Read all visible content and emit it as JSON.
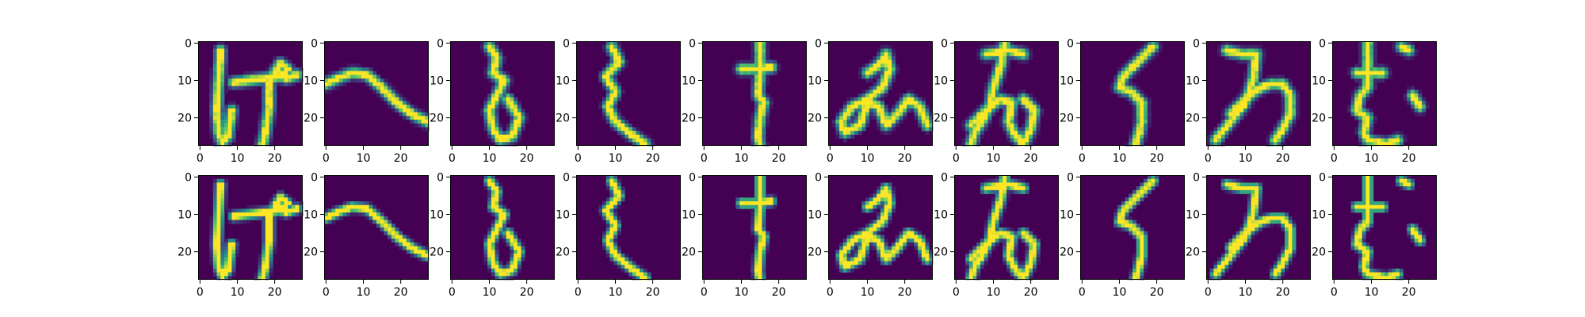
{
  "chart_data": {
    "type": "heatmap",
    "description": "2x10 grid of 28x28 grayscale images rendered with the viridis colormap; top row are inputs, bottom row are reconstructions",
    "grid": {
      "rows": 2,
      "cols": 10
    },
    "image_size": [
      28,
      28
    ],
    "colormap": "viridis",
    "colormap_stops": [
      "#440154",
      "#3b528b",
      "#21918c",
      "#5ec962",
      "#fde725"
    ],
    "x_ticks": [
      0,
      10,
      20
    ],
    "y_ticks": [
      0,
      10,
      20
    ],
    "x_tick_labels": [
      "0",
      "10",
      "20"
    ],
    "y_tick_labels": [
      "0",
      "10",
      "20"
    ],
    "xlim": [
      -0.5,
      27.5
    ],
    "ylim": [
      27.5,
      -0.5
    ],
    "glyphs": [
      {
        "name": "ke",
        "strokes": [
          [
            [
              5.5,
              2
            ],
            [
              5,
              10
            ],
            [
              4.5,
              18
            ],
            [
              5,
              24
            ],
            [
              6,
              26.5
            ],
            [
              7.5,
              25
            ],
            [
              8.5,
              18
            ]
          ],
          [
            [
              9,
              10.5
            ],
            [
              13,
              10
            ],
            [
              17,
              9.5
            ],
            [
              21,
              9
            ],
            [
              23.5,
              7
            ],
            [
              21.5,
              5.5
            ],
            [
              20,
              8
            ],
            [
              23,
              9.5
            ],
            [
              26,
              8.5
            ]
          ],
          [
            [
              18.5,
              10
            ],
            [
              18.5,
              17
            ],
            [
              17.5,
              24
            ],
            [
              16.5,
              28
            ]
          ]
        ]
      },
      {
        "name": "he",
        "strokes": [
          [
            [
              0,
              11
            ],
            [
              3,
              9.5
            ],
            [
              7,
              8
            ],
            [
              11,
              8.5
            ],
            [
              15,
              12
            ],
            [
              19,
              16
            ],
            [
              23,
              19
            ],
            [
              27,
              21
            ]
          ]
        ]
      },
      {
        "name": "ro",
        "strokes": [
          [
            [
              10,
              1
            ],
            [
              12,
              4
            ],
            [
              11,
              8
            ],
            [
              14,
              10
            ],
            [
              12,
              14
            ],
            [
              10,
              18
            ],
            [
              11,
              23
            ],
            [
              13,
              26
            ],
            [
              16,
              25
            ],
            [
              18,
              20
            ],
            [
              15,
              15
            ]
          ]
        ]
      },
      {
        "name": "zu",
        "strokes": [
          [
            [
              9,
              1
            ],
            [
              11,
              5
            ],
            [
              7.5,
              9
            ],
            [
              10,
              13
            ],
            [
              8,
              17
            ],
            [
              10,
              21
            ],
            [
              15,
              25
            ],
            [
              18,
              27
            ]
          ]
        ]
      },
      {
        "name": "su",
        "strokes": [
          [
            [
              10,
              7
            ],
            [
              14,
              7
            ],
            [
              18,
              6.5
            ]
          ],
          [
            [
              15,
              0
            ],
            [
              15,
              8
            ],
            [
              14.5,
              14
            ],
            [
              16,
              16
            ],
            [
              15,
              20
            ],
            [
              14.5,
              25
            ],
            [
              15,
              28
            ]
          ]
        ]
      },
      {
        "name": "mi",
        "strokes": [
          [
            [
              10,
              8
            ],
            [
              13,
              6
            ],
            [
              15,
              3
            ],
            [
              16,
              7
            ],
            [
              14,
              12
            ],
            [
              10,
              15
            ],
            [
              6,
              17
            ],
            [
              3,
              21
            ],
            [
              4,
              24
            ],
            [
              8,
              22
            ],
            [
              10,
              16
            ],
            [
              13,
              17
            ],
            [
              15,
              22
            ],
            [
              18,
              19
            ],
            [
              21,
              15
            ],
            [
              24,
              17
            ],
            [
              26,
              22
            ]
          ]
        ]
      },
      {
        "name": "a",
        "strokes": [
          [
            [
              8,
              3
            ],
            [
              14,
              2
            ],
            [
              18,
              3
            ]
          ],
          [
            [
              13,
              0
            ],
            [
              12,
              6
            ],
            [
              10,
              12
            ],
            [
              9,
              17
            ],
            [
              7,
              21
            ],
            [
              5,
              24
            ],
            [
              4,
              27
            ]
          ],
          [
            [
              4,
              22
            ],
            [
              8,
              18
            ],
            [
              12,
              15
            ],
            [
              15,
              16
            ],
            [
              14,
              21
            ],
            [
              16,
              25
            ],
            [
              18,
              27
            ]
          ],
          [
            [
              18,
              15
            ],
            [
              21,
              18
            ],
            [
              20,
              23
            ],
            [
              18,
              27
            ]
          ]
        ]
      },
      {
        "name": "ku",
        "strokes": [
          [
            [
              19,
              1
            ],
            [
              15,
              5
            ],
            [
              11,
              9
            ],
            [
              10,
              12
            ],
            [
              13,
              13
            ],
            [
              16,
              16
            ],
            [
              16,
              21
            ],
            [
              15,
              25
            ],
            [
              14,
              28
            ]
          ]
        ]
      },
      {
        "name": "wa",
        "strokes": [
          [
            [
              5,
              2
            ],
            [
              9,
              3
            ],
            [
              12,
              3
            ]
          ],
          [
            [
              13,
              3
            ],
            [
              12,
              10
            ],
            [
              10,
              16
            ],
            [
              6,
              21
            ],
            [
              2,
              26
            ]
          ],
          [
            [
              6,
              19
            ],
            [
              10,
              15
            ],
            [
              14,
              12
            ],
            [
              17,
              11
            ],
            [
              20,
              11
            ],
            [
              22,
              14
            ],
            [
              22,
              19
            ],
            [
              20,
              23
            ],
            [
              18,
              26
            ]
          ]
        ]
      },
      {
        "name": "mu",
        "strokes": [
          [
            [
              6,
              8
            ],
            [
              10,
              8
            ],
            [
              13,
              8
            ]
          ],
          [
            [
              9,
              0
            ],
            [
              9,
              7
            ],
            [
              9,
              12
            ],
            [
              7,
              14
            ],
            [
              6,
              18
            ],
            [
              9,
              20
            ],
            [
              8,
              24
            ],
            [
              9,
              26
            ],
            [
              14,
              27
            ],
            [
              17,
              26
            ]
          ],
          [
            [
              18,
              1
            ],
            [
              20,
              2
            ]
          ],
          [
            [
              21,
              14
            ],
            [
              23,
              17
            ]
          ]
        ]
      }
    ]
  }
}
